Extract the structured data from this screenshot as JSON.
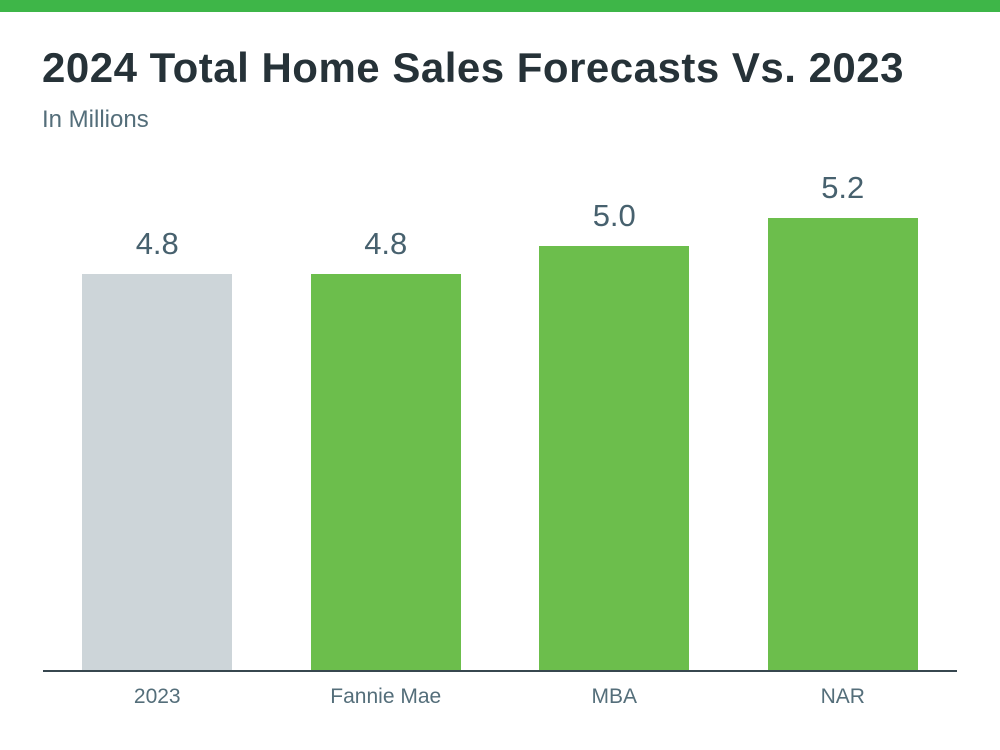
{
  "page": {
    "accent_bar_color": "#3eb648",
    "background_color": "#ffffff"
  },
  "header": {
    "title": "2024 Total Home Sales Forecasts Vs. 2023",
    "subtitle": "In Millions"
  },
  "chart_data": {
    "type": "bar",
    "title": "2024 Total Home Sales Forecasts Vs. 2023",
    "subtitle": "In Millions",
    "units": "Millions of homes",
    "categories": [
      "2023",
      "Fannie Mae",
      "MBA",
      "NAR"
    ],
    "values": [
      4.8,
      4.8,
      5.0,
      5.2
    ],
    "value_labels": [
      "4.8",
      "4.8",
      "5.0",
      "5.2"
    ],
    "bar_colors": [
      "#cdd5d9",
      "#6cbe4c",
      "#6cbe4c",
      "#6cbe4c"
    ],
    "xlabel": "",
    "ylabel": "",
    "y_axis_visible": false,
    "grid": false,
    "legend_position": "none",
    "axis_line_color": "#37474f",
    "category_label_color": "#546e7a",
    "value_label_color": "#47616e"
  }
}
